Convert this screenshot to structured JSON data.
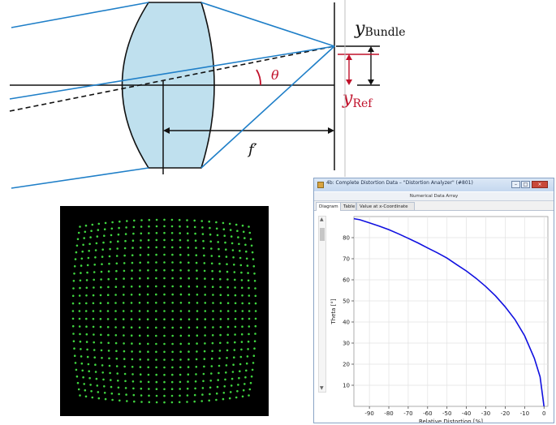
{
  "diagram": {
    "labels": {
      "y_bundle": "y",
      "y_bundle_sub": "Bundle",
      "y_ref": "y",
      "y_ref_sub": "Ref",
      "theta": "θ",
      "f_prime": "f′"
    },
    "colors": {
      "lens_fill": "#bfe0ee",
      "rays": "#1f7fc8",
      "ref_marker": "#c0102a"
    }
  },
  "spot_pattern": {
    "dot_color": "#3fd43f",
    "background": "#000000"
  },
  "window": {
    "title": "4b: Complete Distortion Data – \"Distortion Analyzer\" (#801)",
    "subtitle": "Numerical Data Array",
    "tabs": [
      "Diagram",
      "Table",
      "Value at x-Coordinate"
    ],
    "active_tab": "Diagram",
    "buttons": {
      "minimize": "–",
      "maximize": "□",
      "close": "×"
    }
  },
  "chart_data": {
    "type": "line",
    "xlabel": "Relative Distortion [%]",
    "ylabel": "Theta [°]",
    "xlim": [
      -98,
      2
    ],
    "ylim": [
      0,
      90
    ],
    "xticks": [
      -90,
      -80,
      -70,
      -60,
      -50,
      -40,
      -30,
      -20,
      -10,
      0
    ],
    "yticks": [
      10,
      20,
      30,
      40,
      50,
      60,
      70,
      80
    ],
    "grid": true,
    "series": [
      {
        "color": "#1010e0",
        "x": [
          -98,
          -95,
          -90,
          -85,
          -80,
          -75,
          -70,
          -65,
          -60,
          -55,
          -50,
          -45,
          -40,
          -35,
          -30,
          -25,
          -20,
          -15,
          -10,
          -5,
          -2,
          0
        ],
        "y": [
          89,
          88.5,
          87,
          85.5,
          83.8,
          81.8,
          79.7,
          77.5,
          75.1,
          72.8,
          70.3,
          67.2,
          64.2,
          60.7,
          56.8,
          52.4,
          47.2,
          41.2,
          33.5,
          22.8,
          14,
          0
        ]
      }
    ]
  }
}
